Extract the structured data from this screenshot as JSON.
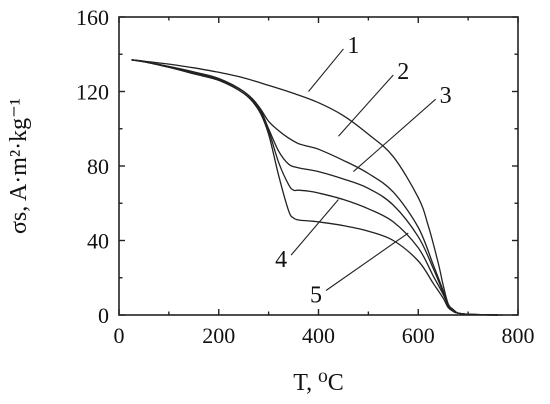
{
  "chart_data": {
    "type": "line",
    "xlabel": "T, ⁰C",
    "ylabel": "σs, A·m²·kg⁻¹",
    "xlim": [
      0,
      800
    ],
    "ylim": [
      0,
      160
    ],
    "xticks": [
      0,
      200,
      400,
      600,
      800
    ],
    "yticks": [
      0,
      40,
      80,
      120,
      160
    ],
    "grid": false,
    "series": [
      {
        "name": "1",
        "x": [
          25,
          50,
          100,
          150,
          200,
          250,
          300,
          350,
          400,
          450,
          500,
          550,
          600,
          620,
          640,
          650,
          660,
          670,
          680,
          700,
          720,
          750,
          770
        ],
        "y": [
          137,
          136.3,
          134.7,
          132.7,
          130.3,
          127.3,
          123.3,
          119,
          114,
          107,
          97,
          85,
          63,
          48,
          28,
          16,
          6,
          3,
          1,
          0.4,
          0.2,
          0,
          0
        ]
      },
      {
        "name": "2",
        "x": [
          25,
          50,
          100,
          150,
          200,
          250,
          280,
          300,
          320,
          340,
          360,
          380,
          400,
          450,
          500,
          550,
          600,
          630,
          650,
          660,
          670,
          680,
          700,
          720,
          760
        ],
        "y": [
          137,
          136,
          133.5,
          130.5,
          127,
          120,
          112,
          104,
          99,
          95,
          92,
          90.5,
          89,
          83,
          76,
          66,
          47,
          27,
          13,
          5,
          2,
          1,
          0.4,
          0.2,
          0
        ]
      },
      {
        "name": "3",
        "x": [
          25,
          50,
          100,
          150,
          200,
          250,
          280,
          300,
          320,
          340,
          360,
          400,
          450,
          500,
          550,
          600,
          630,
          650,
          660,
          670,
          680,
          700,
          760
        ],
        "y": [
          137,
          136,
          133.3,
          130,
          126.5,
          120,
          112,
          100,
          88,
          81,
          79,
          77,
          73,
          68,
          59,
          42,
          25,
          12,
          5,
          2,
          1,
          0.4,
          0
        ]
      },
      {
        "name": "4",
        "x": [
          25,
          50,
          100,
          150,
          200,
          250,
          280,
          300,
          320,
          340,
          350,
          360,
          380,
          400,
          450,
          500,
          550,
          600,
          630,
          650,
          660,
          670,
          680,
          700,
          760
        ],
        "y": [
          137,
          136,
          133,
          129.5,
          126,
          119,
          111,
          99,
          82,
          70,
          67,
          67,
          66.5,
          65.5,
          62,
          57,
          50,
          36,
          21,
          11,
          5,
          2,
          1,
          0.4,
          0
        ]
      },
      {
        "name": "5",
        "x": [
          25,
          50,
          100,
          150,
          200,
          250,
          280,
          300,
          320,
          340,
          350,
          360,
          380,
          400,
          450,
          500,
          550,
          600,
          630,
          650,
          660,
          670,
          680,
          700,
          760
        ],
        "y": [
          137,
          136,
          133,
          129.5,
          126,
          119,
          110,
          97,
          75,
          56,
          52,
          51,
          50.5,
          50,
          48,
          45,
          40,
          29,
          17,
          9,
          4,
          2,
          1,
          0.4,
          0
        ]
      }
    ],
    "curve_labels": [
      {
        "text": "1",
        "x": 470,
        "y": 145,
        "line_to": [
          380,
          120
        ]
      },
      {
        "text": "2",
        "x": 570,
        "y": 131,
        "line_to": [
          440,
          96
        ]
      },
      {
        "text": "3",
        "x": 655,
        "y": 118,
        "line_to": [
          470,
          77
        ]
      },
      {
        "text": "4",
        "x": 325,
        "y": 30,
        "line_to": [
          440,
          62
        ]
      },
      {
        "text": "5",
        "x": 395,
        "y": 11,
        "line_to": [
          580,
          44
        ]
      }
    ]
  }
}
